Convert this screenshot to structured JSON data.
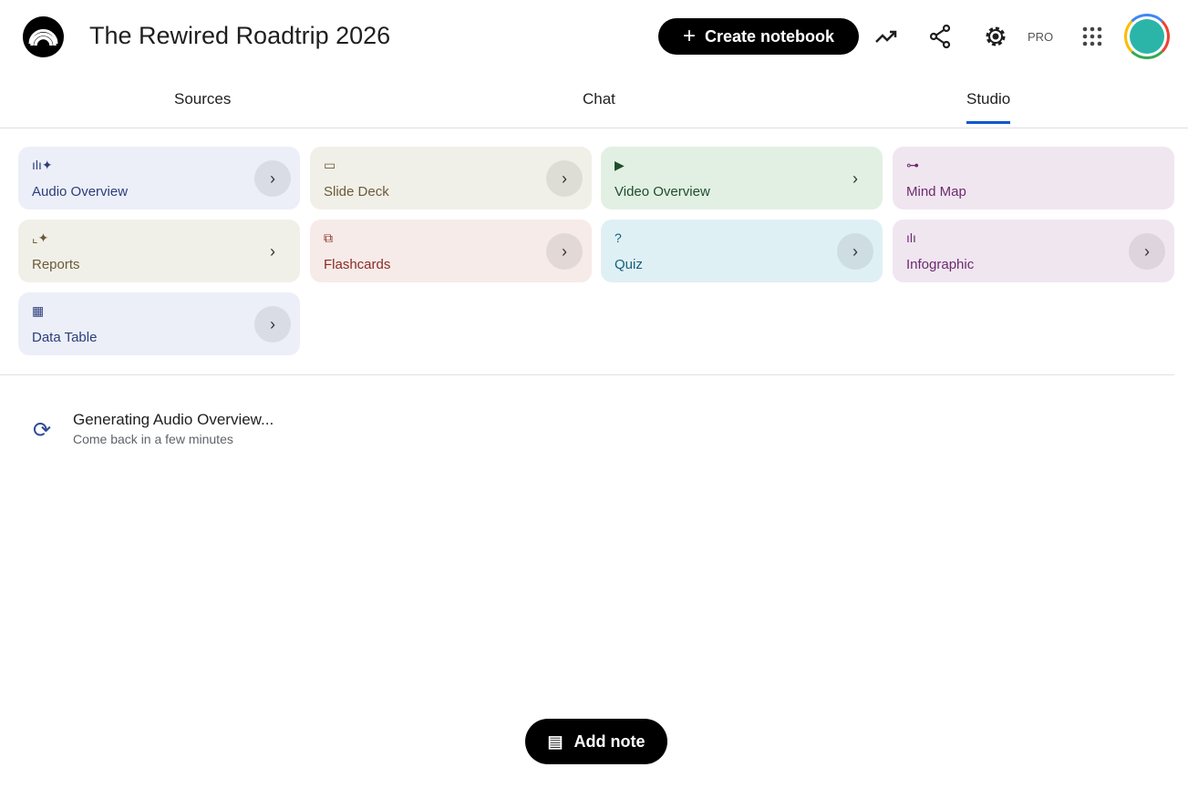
{
  "header": {
    "title": "The Rewired Roadtrip 2026",
    "create_label": "Create notebook",
    "pro_label": "PRO"
  },
  "tabs": [
    {
      "label": "Sources"
    },
    {
      "label": "Chat"
    },
    {
      "label": "Studio",
      "active": true
    }
  ],
  "studio": {
    "tools": [
      {
        "label": "Audio Overview",
        "icon": "audio-waveform-sparkle-icon",
        "bg": "#eceff8",
        "fg": "#2c3e7a"
      },
      {
        "label": "Slide Deck",
        "icon": "slides-icon",
        "bg": "#f1f0e8",
        "fg": "#6b5a3a"
      },
      {
        "label": "Video Overview",
        "icon": "video-icon",
        "bg": "#e2f0e4",
        "fg": "#1f4d2a"
      },
      {
        "label": "Mind Map",
        "icon": "mind-map-icon",
        "bg": "#f0e6f0",
        "fg": "#6b2b6e"
      },
      {
        "label": "Reports",
        "icon": "reports-icon",
        "bg": "#f1f0e8",
        "fg": "#6b5a3a"
      },
      {
        "label": "Flashcards",
        "icon": "flashcards-icon",
        "bg": "#f6ebe8",
        "fg": "#8a2c25"
      },
      {
        "label": "Quiz",
        "icon": "quiz-icon",
        "bg": "#dff0f5",
        "fg": "#16607a"
      },
      {
        "label": "Infographic",
        "icon": "infographic-icon",
        "bg": "#f0e6f0",
        "fg": "#6b2b6e"
      },
      {
        "label": "Data Table",
        "icon": "data-table-icon",
        "bg": "#eceff8",
        "fg": "#2c3e7a"
      }
    ]
  },
  "generating": {
    "title": "Generating Audio Overview...",
    "subtitle": "Come back in a few minutes"
  },
  "add_note_label": "Add note"
}
